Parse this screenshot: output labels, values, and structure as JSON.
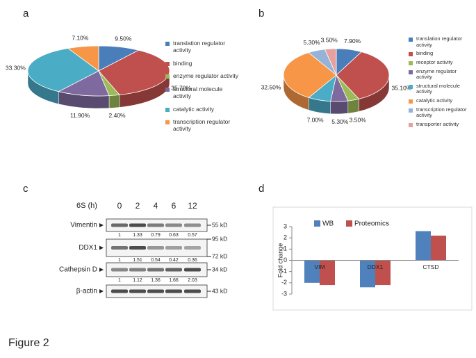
{
  "panels": [
    "a",
    "b",
    "c",
    "d"
  ],
  "caption": "Figure 2",
  "chart_data": [
    {
      "type": "pie",
      "categories": [
        "translation regulator activity",
        "binding",
        "enzyme regulator activity",
        "structural molecule activity",
        "catalytic activity",
        "transcription regulator activity"
      ],
      "values": [
        9.5,
        35.7,
        2.4,
        11.9,
        33.3,
        7.1
      ],
      "value_labels": [
        "9.50%",
        "35.70%",
        "2.40%",
        "11.90%",
        "33.30%",
        "7.10%"
      ],
      "colors": [
        "#4a7ebb",
        "#c0504d",
        "#9bbb59",
        "#7f6aa0",
        "#4bacc6",
        "#f79646"
      ]
    },
    {
      "type": "pie",
      "categories": [
        "translation regulator activity",
        "binding",
        "receptor activity",
        "enzyme regulator activity",
        "structural molecule activity",
        "catalytic activity",
        "transcription regulator activity",
        "transporter activity"
      ],
      "values": [
        7.9,
        35.1,
        3.5,
        5.3,
        7.0,
        32.5,
        5.3,
        3.5
      ],
      "value_labels": [
        "7.90%",
        "35.10%",
        "3.50%",
        "5.30%",
        "7.00%",
        "32.50%",
        "5.30%",
        "3.50%"
      ],
      "colors": [
        "#4a7ebb",
        "#c0504d",
        "#9bbb59",
        "#7f6aa0",
        "#4bacc6",
        "#f79646",
        "#95b3d7",
        "#e6a0a0"
      ]
    },
    {
      "type": "bar",
      "ylabel": "Fold change",
      "categories": [
        "VIM",
        "DDX1",
        "CTSD"
      ],
      "series": [
        {
          "name": "WB",
          "color": "#4f81bd",
          "values": [
            -2.0,
            -2.4,
            2.6
          ]
        },
        {
          "name": "Proteomics",
          "color": "#c0504d",
          "values": [
            -2.2,
            -2.2,
            2.2
          ]
        }
      ],
      "ylim": [
        -3,
        3
      ],
      "yticks": [
        -3,
        -2,
        -1,
        0,
        1,
        2,
        3
      ],
      "grid": false,
      "legend": "top"
    }
  ],
  "blot": {
    "condition": "6S (h)",
    "lanes": [
      "0",
      "2",
      "4",
      "6",
      "12"
    ],
    "rows": [
      {
        "name": "Vimentin",
        "markers": [
          "55 kD"
        ],
        "quant": [
          1,
          1.33,
          0.79,
          0.63,
          0.57
        ]
      },
      {
        "name": "DDX1",
        "markers": [
          "95 kD",
          "72 kD"
        ],
        "quant": [
          1,
          1.51,
          0.54,
          0.42,
          0.36
        ]
      },
      {
        "name": "Cathepsin D",
        "markers": [
          "34 kD"
        ],
        "quant": [
          1,
          1.12,
          1.36,
          1.66,
          2.03
        ]
      },
      {
        "name": "β-actin",
        "markers": [
          "43 kD"
        ]
      }
    ]
  }
}
